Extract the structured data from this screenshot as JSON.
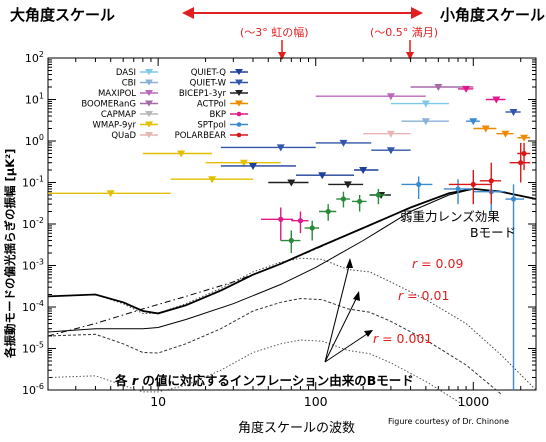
{
  "header": {
    "large_scale": "大角度スケール",
    "small_scale": "小角度スケール",
    "rainbow_note": "(〜3° 虹の幅)",
    "moon_note": "(〜0.5° 満月)"
  },
  "credit": "Figure courtesy of Dr. Chinone",
  "annotations": {
    "lensing_line1": "弱重力レンズ効果",
    "lensing_line2": "Bモード",
    "r_labels": [
      {
        "prefix": "r",
        "value": " = 0.09"
      },
      {
        "prefix": "r",
        "value": " = 0.01"
      },
      {
        "prefix": "r",
        "value": " = 0.001"
      }
    ],
    "inflation_prefix": "各 ",
    "inflation_r": "r",
    "inflation_suffix": " の値に対応するインフレーション由来のBモード"
  },
  "colors": {
    "arrow": "#e02020",
    "r_label": "#e02020",
    "model": "#000000",
    "lensing": "#000000"
  },
  "chart_data": {
    "type": "scatter",
    "xlabel": "角度スケールの波数",
    "ylabel": "各振動モードの偏光揺らぎの振幅 [μK²]",
    "xscale": "log",
    "yscale": "log",
    "xlim": [
      2,
      2500
    ],
    "ylim": [
      1e-06,
      100
    ],
    "x_ticks": [
      10,
      100,
      1000
    ],
    "x_tick_labels": [
      "10",
      "100",
      "1000"
    ],
    "y_ticks": [
      1e-06,
      1e-05,
      0.0001,
      0.001,
      0.01,
      0.1,
      1,
      10,
      100
    ],
    "y_tick_labels": [
      "10^-6",
      "10^-5",
      "10^-4",
      "10^-3",
      "10^-2",
      "10^-1",
      "10^0",
      "10^1",
      "10^2"
    ],
    "legend_position": "top-left",
    "legend": [
      {
        "name": "DASI",
        "color": "#7fc8e8"
      },
      {
        "name": "CBI",
        "color": "#8ab0d8"
      },
      {
        "name": "MAXIPOL",
        "color": "#b86ab8"
      },
      {
        "name": "BOOMERanG",
        "color": "#a66aa6"
      },
      {
        "name": "CAPMAP",
        "color": "#b8b8b8"
      },
      {
        "name": "WMAP-9yr",
        "color": "#e0c000"
      },
      {
        "name": "QUaD",
        "color": "#e8b4b4"
      },
      {
        "name": "QUIET-Q",
        "color": "#1f3f99"
      },
      {
        "name": "QUIET-W",
        "color": "#3355aa"
      },
      {
        "name": "BICEP1-3yr",
        "color": "#202020"
      },
      {
        "name": "ACTPol",
        "color": "#f08a00"
      },
      {
        "name": "BKP",
        "color": "#e0198a"
      },
      {
        "name": "SPTpol",
        "color": "#3a8ad0"
      },
      {
        "name": "POLARBEAR",
        "color": "#d81818"
      }
    ],
    "lensing_curve": [
      [
        2,
        2e-05
      ],
      [
        4,
        4e-05
      ],
      [
        8,
        9e-05
      ],
      [
        15,
        0.00018
      ],
      [
        30,
        0.0004
      ],
      [
        60,
        0.0011
      ],
      [
        100,
        0.0025
      ],
      [
        200,
        0.008
      ],
      [
        400,
        0.025
      ],
      [
        700,
        0.055
      ],
      [
        1000,
        0.07
      ],
      [
        1500,
        0.06
      ],
      [
        2500,
        0.04
      ]
    ],
    "total_r009": [
      [
        2,
        0.00018
      ],
      [
        4,
        0.0002
      ],
      [
        6,
        0.00013
      ],
      [
        8,
        8e-05
      ],
      [
        10,
        7e-05
      ],
      [
        15,
        0.00011
      ],
      [
        25,
        0.00025
      ],
      [
        40,
        0.0006
      ],
      [
        60,
        0.0011
      ],
      [
        100,
        0.0026
      ],
      [
        200,
        0.008
      ],
      [
        400,
        0.025
      ],
      [
        700,
        0.055
      ],
      [
        1000,
        0.07
      ],
      [
        1500,
        0.06
      ],
      [
        2500,
        0.04
      ]
    ],
    "total_r001": [
      [
        2,
        2.5e-05
      ],
      [
        4,
        3e-05
      ],
      [
        8,
        3e-05
      ],
      [
        10,
        3.2e-05
      ],
      [
        15,
        5e-05
      ],
      [
        30,
        0.00012
      ],
      [
        60,
        0.00035
      ],
      [
        100,
        0.0009
      ],
      [
        200,
        0.004
      ],
      [
        400,
        0.02
      ],
      [
        700,
        0.05
      ],
      [
        1000,
        0.07
      ],
      [
        1500,
        0.06
      ],
      [
        2500,
        0.04
      ]
    ],
    "primordial_r009": [
      [
        2,
        0.00018
      ],
      [
        4,
        0.0002
      ],
      [
        6,
        0.00012
      ],
      [
        8,
        7e-05
      ],
      [
        10,
        7e-05
      ],
      [
        15,
        0.00012
      ],
      [
        25,
        0.00028
      ],
      [
        40,
        0.0007
      ],
      [
        60,
        0.0012
      ],
      [
        80,
        0.0015
      ],
      [
        110,
        0.0014
      ],
      [
        160,
        0.0008
      ],
      [
        220,
        0.0007
      ],
      [
        300,
        0.0004
      ],
      [
        500,
        0.00015
      ],
      [
        900,
        4e-05
      ],
      [
        1500,
        7e-06
      ],
      [
        2500,
        1e-06
      ]
    ],
    "primordial_r001": [
      [
        2,
        2e-05
      ],
      [
        4,
        2.2e-05
      ],
      [
        6,
        1.3e-05
      ],
      [
        8,
        8e-06
      ],
      [
        10,
        7.8e-06
      ],
      [
        15,
        1.3e-05
      ],
      [
        25,
        3e-05
      ],
      [
        40,
        8e-05
      ],
      [
        60,
        0.00013
      ],
      [
        80,
        0.00016
      ],
      [
        110,
        0.00015
      ],
      [
        160,
        9e-05
      ],
      [
        220,
        7.5e-05
      ],
      [
        300,
        4.5e-05
      ],
      [
        500,
        1.6e-05
      ],
      [
        900,
        4e-06
      ],
      [
        1500,
        8e-07
      ]
    ],
    "primordial_r0001": [
      [
        2,
        2e-06
      ],
      [
        4,
        2.2e-06
      ],
      [
        6,
        1.3e-06
      ],
      [
        8,
        9e-07
      ],
      [
        10,
        9e-07
      ],
      [
        15,
        1.3e-06
      ],
      [
        25,
        3e-06
      ],
      [
        40,
        8e-06
      ],
      [
        60,
        1.3e-05
      ],
      [
        80,
        1.6e-05
      ],
      [
        110,
        1.5e-05
      ],
      [
        160,
        9e-06
      ],
      [
        220,
        7.5e-06
      ],
      [
        300,
        4.5e-06
      ],
      [
        500,
        1.6e-06
      ],
      [
        900,
        4e-07
      ]
    ],
    "data_points": [
      {
        "s": "WMAP-9yr",
        "c": "#e0c000",
        "x": 5,
        "y": 0.055,
        "xl": 2,
        "xh": 12
      },
      {
        "s": "WMAP-9yr",
        "c": "#e0c000",
        "x": 22,
        "y": 0.12,
        "xl": 12,
        "xh": 40
      },
      {
        "s": "WMAP-9yr",
        "c": "#e0c000",
        "x": 35,
        "y": 0.3,
        "xl": 20,
        "xh": 60
      },
      {
        "s": "WMAP-9yr",
        "c": "#e0c000",
        "x": 14,
        "y": 0.5,
        "xl": 8,
        "xh": 22
      },
      {
        "s": "BICEP1-3yr",
        "c": "#202020",
        "x": 70,
        "y": 0.1,
        "xl": 50,
        "xh": 90
      },
      {
        "s": "BICEP1-3yr",
        "c": "#202020",
        "x": 160,
        "y": 0.09,
        "xl": 120,
        "xh": 200
      },
      {
        "s": "BICEP1-3yr",
        "c": "#202020",
        "x": 260,
        "y": 0.05,
        "xl": 220,
        "xh": 300
      },
      {
        "s": "QUIET-Q",
        "c": "#1f3f99",
        "x": 40,
        "y": 0.25,
        "xl": 25,
        "xh": 75
      },
      {
        "s": "QUIET-Q",
        "c": "#1f3f99",
        "x": 110,
        "y": 0.15,
        "xl": 75,
        "xh": 175
      },
      {
        "s": "QUIET-Q",
        "c": "#1f3f99",
        "x": 200,
        "y": 0.2,
        "xl": 175,
        "xh": 250
      },
      {
        "s": "QUIET-W",
        "c": "#3355aa",
        "x": 60,
        "y": 0.7,
        "xl": 25,
        "xh": 100
      },
      {
        "s": "QUIET-W",
        "c": "#3355aa",
        "x": 150,
        "y": 0.9,
        "xl": 100,
        "xh": 225
      },
      {
        "s": "QUIET-W",
        "c": "#3355aa",
        "x": 300,
        "y": 0.6,
        "xl": 225,
        "xh": 400
      },
      {
        "s": "CBI",
        "c": "#8ab0d8",
        "x": 500,
        "y": 3,
        "xl": 350,
        "xh": 700
      },
      {
        "s": "DASI",
        "c": "#7fc8e8",
        "x": 500,
        "y": 8,
        "xl": 300,
        "xh": 700
      },
      {
        "s": "QUaD",
        "c": "#e8b4b4",
        "x": 300,
        "y": 1.5,
        "xl": 200,
        "xh": 400
      },
      {
        "s": "MAXIPOL",
        "c": "#b86ab8",
        "x": 300,
        "y": 12,
        "xl": 100,
        "xh": 500
      },
      {
        "s": "BOOMERanG",
        "c": "#a66aa6",
        "x": 600,
        "y": 20,
        "xl": 400,
        "xh": 1000
      },
      {
        "s": "BKP",
        "c": "#e0198a",
        "x": 60,
        "y": 0.013,
        "xl": 45,
        "xh": 72,
        "yl": 0.004,
        "yh": 0.025
      },
      {
        "s": "BKP",
        "c": "#e0198a",
        "x": 80,
        "y": 0.012,
        "xl": 70,
        "xh": 90,
        "yl": 0.006,
        "yh": 0.02
      },
      {
        "s": "SPTpol",
        "c": "#3a8ad0",
        "x": 450,
        "y": 0.09,
        "xl": 350,
        "xh": 550,
        "yl": 0.04,
        "yh": 0.14
      },
      {
        "s": "SPTpol",
        "c": "#3a8ad0",
        "x": 800,
        "y": 0.07,
        "xl": 650,
        "xh": 1000,
        "yl": 0.03,
        "yh": 0.12
      },
      {
        "s": "SPTpol",
        "c": "#3a8ad0",
        "x": 1300,
        "y": 0.06,
        "xl": 1000,
        "xh": 1600,
        "yl": 0.02,
        "yh": 0.11
      },
      {
        "s": "SPTpol",
        "c": "#3a8ad0",
        "x": 1800,
        "y": 0.04,
        "xl": 1600,
        "xh": 2100,
        "yl": 1e-06,
        "yh": 0.09
      },
      {
        "s": "POLARBEAR",
        "c": "#d81818",
        "x": 1000,
        "y": 0.09,
        "xl": 700,
        "xh": 1300,
        "yl": 0.03,
        "yh": 0.2
      },
      {
        "s": "POLARBEAR",
        "c": "#d81818",
        "x": 1300,
        "y": 0.11,
        "xl": 1100,
        "xh": 1500,
        "yl": 0.03,
        "yh": 0.3
      },
      {
        "s": "POLARBEAR",
        "c": "#d81818",
        "x": 2000,
        "y": 0.3,
        "xl": 1700,
        "xh": 2300,
        "yl": 0.1,
        "yh": 0.9
      },
      {
        "s": "POLARBEAR",
        "c": "#d81818",
        "x": 2100,
        "y": 0.5,
        "xl": 1900,
        "xh": 2300,
        "yl": 0.2,
        "yh": 0.9
      },
      {
        "s": "BKP",
        "c": "#2a8a3a",
        "x": 70,
        "y": 0.004,
        "xl": 60,
        "xh": 80,
        "yl": 0.002,
        "yh": 0.007
      },
      {
        "s": "BKP",
        "c": "#2a8a3a",
        "x": 95,
        "y": 0.008,
        "xl": 85,
        "xh": 105,
        "yl": 0.004,
        "yh": 0.012
      },
      {
        "s": "BKP",
        "c": "#2a8a3a",
        "x": 120,
        "y": 0.02,
        "xl": 105,
        "xh": 135,
        "yl": 0.012,
        "yh": 0.03
      },
      {
        "s": "BKP",
        "c": "#2a8a3a",
        "x": 150,
        "y": 0.04,
        "xl": 135,
        "xh": 165,
        "yl": 0.025,
        "yh": 0.06
      },
      {
        "s": "BKP",
        "c": "#2a8a3a",
        "x": 190,
        "y": 0.035,
        "xl": 170,
        "xh": 210,
        "yl": 0.02,
        "yh": 0.05
      },
      {
        "s": "BKP",
        "c": "#2a8a3a",
        "x": 250,
        "y": 0.05,
        "xl": 220,
        "xh": 280,
        "yl": 0.03,
        "yh": 0.07
      },
      {
        "s": "ACTPol",
        "c": "#f08a00",
        "x": 1200,
        "y": 2,
        "xl": 1000,
        "xh": 1400
      },
      {
        "s": "ACTPol",
        "c": "#f08a00",
        "x": 1600,
        "y": 1.5,
        "xl": 1400,
        "xh": 1800
      },
      {
        "s": "ACTPol",
        "c": "#f08a00",
        "x": 2100,
        "y": 1.2,
        "xl": 1900,
        "xh": 2300
      },
      {
        "s": "BKP",
        "c": "#e0198a",
        "x": 900,
        "y": 18,
        "xl": 800,
        "xh": 1000
      },
      {
        "s": "BKP",
        "c": "#e0198a",
        "x": 1400,
        "y": 10,
        "xl": 1200,
        "xh": 1600
      },
      {
        "s": "SPTpol",
        "c": "#3a8ad0",
        "x": 1000,
        "y": 3,
        "xl": 900,
        "xh": 1100
      },
      {
        "s": "QUIET-W",
        "c": "#3355aa",
        "x": 1800,
        "y": 5,
        "xl": 1600,
        "xh": 2000
      }
    ]
  }
}
